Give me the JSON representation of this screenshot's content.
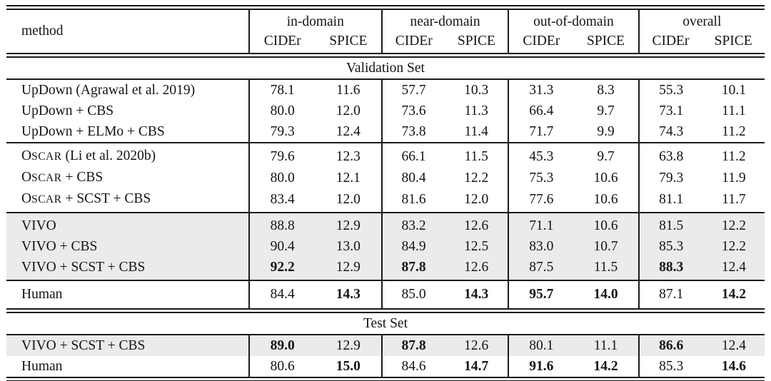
{
  "colors": {
    "background": "#ffffff",
    "highlight_row": "#ebebeb",
    "rule": "#1a1a1a",
    "text": "#141414"
  },
  "table": {
    "header": {
      "method_label": "method",
      "groups": [
        {
          "label": "in-domain",
          "sub": [
            "CIDEr",
            "SPICE"
          ]
        },
        {
          "label": "near-domain",
          "sub": [
            "CIDEr",
            "SPICE"
          ]
        },
        {
          "label": "out-of-domain",
          "sub": [
            "CIDEr",
            "SPICE"
          ]
        },
        {
          "label": "overall",
          "sub": [
            "CIDEr",
            "SPICE"
          ]
        }
      ]
    },
    "sections": [
      {
        "title": "Validation Set",
        "groups": [
          {
            "rows": [
              {
                "method": "UpDown (Agrawal et al. 2019)",
                "highlight": false,
                "values": [
                  {
                    "v": "78.1"
                  },
                  {
                    "v": "11.6"
                  },
                  {
                    "v": "57.7"
                  },
                  {
                    "v": "10.3"
                  },
                  {
                    "v": "31.3"
                  },
                  {
                    "v": "8.3"
                  },
                  {
                    "v": "55.3"
                  },
                  {
                    "v": "10.1"
                  }
                ]
              },
              {
                "method": "UpDown + CBS",
                "highlight": false,
                "values": [
                  {
                    "v": "80.0"
                  },
                  {
                    "v": "12.0"
                  },
                  {
                    "v": "73.6"
                  },
                  {
                    "v": "11.3"
                  },
                  {
                    "v": "66.4"
                  },
                  {
                    "v": "9.7"
                  },
                  {
                    "v": "73.1"
                  },
                  {
                    "v": "11.1"
                  }
                ]
              },
              {
                "method": "UpDown + ELMo + CBS",
                "highlight": false,
                "values": [
                  {
                    "v": "79.3"
                  },
                  {
                    "v": "12.4"
                  },
                  {
                    "v": "73.8"
                  },
                  {
                    "v": "11.4"
                  },
                  {
                    "v": "71.7"
                  },
                  {
                    "v": "9.9"
                  },
                  {
                    "v": "74.3"
                  },
                  {
                    "v": "11.2"
                  }
                ]
              }
            ]
          },
          {
            "rows": [
              {
                "method": "OSCAR (Li et al. 2020b)",
                "highlight": false,
                "parts": [
                  {
                    "t": "O"
                  },
                  {
                    "t": "SCAR",
                    "sc": true
                  },
                  {
                    "t": " (Li et al. 2020b)"
                  }
                ],
                "values": [
                  {
                    "v": "79.6"
                  },
                  {
                    "v": "12.3"
                  },
                  {
                    "v": "66.1"
                  },
                  {
                    "v": "11.5"
                  },
                  {
                    "v": "45.3"
                  },
                  {
                    "v": "9.7"
                  },
                  {
                    "v": "63.8"
                  },
                  {
                    "v": "11.2"
                  }
                ]
              },
              {
                "method": "OSCAR + CBS",
                "highlight": false,
                "parts": [
                  {
                    "t": "O"
                  },
                  {
                    "t": "SCAR",
                    "sc": true
                  },
                  {
                    "t": " + CBS"
                  }
                ],
                "values": [
                  {
                    "v": "80.0"
                  },
                  {
                    "v": "12.1"
                  },
                  {
                    "v": "80.4"
                  },
                  {
                    "v": "12.2"
                  },
                  {
                    "v": "75.3"
                  },
                  {
                    "v": "10.6"
                  },
                  {
                    "v": "79.3"
                  },
                  {
                    "v": "11.9"
                  }
                ]
              },
              {
                "method": "OSCAR + SCST + CBS",
                "highlight": false,
                "parts": [
                  {
                    "t": "O"
                  },
                  {
                    "t": "SCAR",
                    "sc": true
                  },
                  {
                    "t": " + SCST + CBS"
                  }
                ],
                "values": [
                  {
                    "v": "83.4"
                  },
                  {
                    "v": "12.0"
                  },
                  {
                    "v": "81.6"
                  },
                  {
                    "v": "12.0"
                  },
                  {
                    "v": "77.6"
                  },
                  {
                    "v": "10.6"
                  },
                  {
                    "v": "81.1"
                  },
                  {
                    "v": "11.7"
                  }
                ]
              }
            ]
          },
          {
            "rows": [
              {
                "method": "VIVO",
                "highlight": true,
                "values": [
                  {
                    "v": "88.8"
                  },
                  {
                    "v": "12.9"
                  },
                  {
                    "v": "83.2"
                  },
                  {
                    "v": "12.6"
                  },
                  {
                    "v": "71.1"
                  },
                  {
                    "v": "10.6"
                  },
                  {
                    "v": "81.5"
                  },
                  {
                    "v": "12.2"
                  }
                ]
              },
              {
                "method": "VIVO + CBS",
                "highlight": true,
                "values": [
                  {
                    "v": "90.4"
                  },
                  {
                    "v": "13.0"
                  },
                  {
                    "v": "84.9"
                  },
                  {
                    "v": "12.5"
                  },
                  {
                    "v": "83.0"
                  },
                  {
                    "v": "10.7"
                  },
                  {
                    "v": "85.3"
                  },
                  {
                    "v": "12.2"
                  }
                ]
              },
              {
                "method": "VIVO + SCST + CBS",
                "highlight": true,
                "values": [
                  {
                    "v": "92.2",
                    "b": true
                  },
                  {
                    "v": "12.9"
                  },
                  {
                    "v": "87.8",
                    "b": true
                  },
                  {
                    "v": "12.6"
                  },
                  {
                    "v": "87.5"
                  },
                  {
                    "v": "11.5"
                  },
                  {
                    "v": "88.3",
                    "b": true
                  },
                  {
                    "v": "12.4"
                  }
                ]
              }
            ]
          },
          {
            "rows": [
              {
                "method": "Human",
                "highlight": false,
                "tall": true,
                "values": [
                  {
                    "v": "84.4"
                  },
                  {
                    "v": "14.3",
                    "b": true
                  },
                  {
                    "v": "85.0"
                  },
                  {
                    "v": "14.3",
                    "b": true
                  },
                  {
                    "v": "95.7",
                    "b": true
                  },
                  {
                    "v": "14.0",
                    "b": true
                  },
                  {
                    "v": "87.1"
                  },
                  {
                    "v": "14.2",
                    "b": true
                  }
                ]
              }
            ]
          }
        ]
      },
      {
        "title": "Test Set",
        "groups": [
          {
            "rows": [
              {
                "method": "VIVO + SCST + CBS",
                "highlight": true,
                "values": [
                  {
                    "v": "89.0",
                    "b": true
                  },
                  {
                    "v": "12.9"
                  },
                  {
                    "v": "87.8",
                    "b": true
                  },
                  {
                    "v": "12.6"
                  },
                  {
                    "v": "80.1"
                  },
                  {
                    "v": "11.1"
                  },
                  {
                    "v": "86.6",
                    "b": true
                  },
                  {
                    "v": "12.4"
                  }
                ]
              },
              {
                "method": "Human",
                "highlight": false,
                "values": [
                  {
                    "v": "80.6"
                  },
                  {
                    "v": "15.0",
                    "b": true
                  },
                  {
                    "v": "84.6"
                  },
                  {
                    "v": "14.7",
                    "b": true
                  },
                  {
                    "v": "91.6",
                    "b": true
                  },
                  {
                    "v": "14.2",
                    "b": true
                  },
                  {
                    "v": "85.3"
                  },
                  {
                    "v": "14.6",
                    "b": true
                  }
                ]
              }
            ]
          }
        ]
      }
    ]
  }
}
